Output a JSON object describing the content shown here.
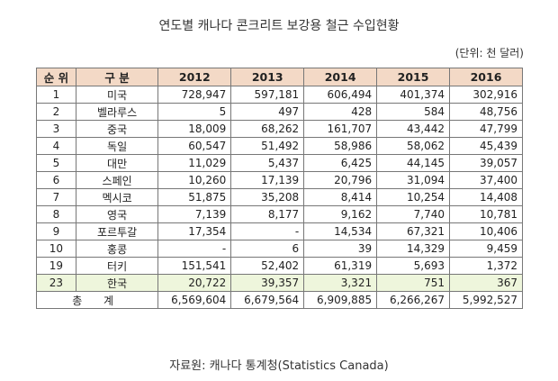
{
  "title": "연도별 캐나다 콘크리트 보강용 철근 수입현황",
  "unit": "(단위: 천 달러)",
  "headers": [
    "순 위",
    "구 분",
    "2012",
    "2013",
    "2014",
    "2015",
    "2016"
  ],
  "rows": [
    {
      "rank": "1",
      "country": "미국",
      "v": [
        "728,947",
        "597,181",
        "606,494",
        "401,374",
        "302,916"
      ]
    },
    {
      "rank": "2",
      "country": "벨라루스",
      "v": [
        "5",
        "497",
        "428",
        "584",
        "48,756"
      ]
    },
    {
      "rank": "3",
      "country": "중국",
      "v": [
        "18,009",
        "68,262",
        "161,707",
        "43,442",
        "47,799"
      ]
    },
    {
      "rank": "4",
      "country": "독일",
      "v": [
        "60,547",
        "51,492",
        "58,986",
        "58,062",
        "45,439"
      ]
    },
    {
      "rank": "5",
      "country": "대만",
      "v": [
        "11,029",
        "5,437",
        "6,425",
        "44,145",
        "39,057"
      ]
    },
    {
      "rank": "6",
      "country": "스페인",
      "v": [
        "10,260",
        "17,139",
        "20,796",
        "31,094",
        "37,400"
      ]
    },
    {
      "rank": "7",
      "country": "멕시코",
      "v": [
        "51,875",
        "35,208",
        "8,414",
        "10,254",
        "14,408"
      ]
    },
    {
      "rank": "8",
      "country": "영국",
      "v": [
        "7,139",
        "8,177",
        "9,162",
        "7,740",
        "10,781"
      ]
    },
    {
      "rank": "9",
      "country": "포르투갈",
      "v": [
        "17,354",
        "-",
        "14,534",
        "67,321",
        "10,406"
      ]
    },
    {
      "rank": "10",
      "country": "홍콩",
      "v": [
        "-",
        "6",
        "39",
        "14,329",
        "9,459"
      ]
    },
    {
      "rank": "19",
      "country": "터키",
      "v": [
        "151,541",
        "52,402",
        "61,319",
        "5,693",
        "1,372"
      ]
    },
    {
      "rank": "23",
      "country": "한국",
      "v": [
        "20,722",
        "39,357",
        "3,321",
        "751",
        "367"
      ],
      "highlight": true
    }
  ],
  "total": {
    "label": "총 계",
    "v": [
      "6,569,604",
      "6,679,564",
      "6,909,885",
      "6,266,267",
      "5,992,527"
    ]
  },
  "source": "자료원: 캐나다 통계청(Statistics Canada)",
  "colors": {
    "header_bg": "#f3d9c6",
    "highlight_bg": "#eef6dc",
    "border": "#777777"
  }
}
